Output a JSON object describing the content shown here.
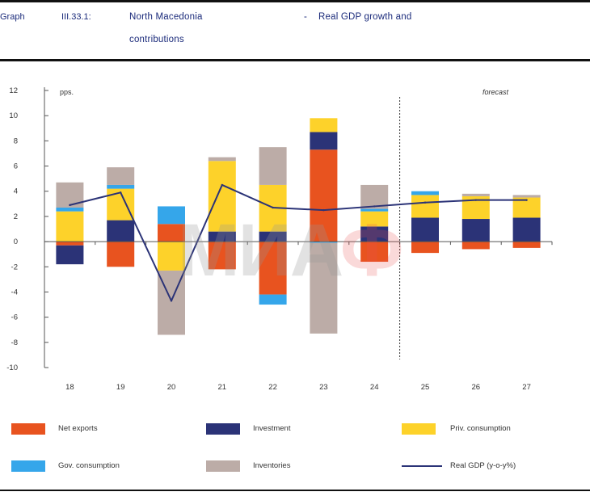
{
  "header": {
    "graph_label": "Graph",
    "graph_number": "III.33.1:",
    "title_part1": "North Macedonia",
    "dash": "-",
    "title_part2": "Real GDP growth and",
    "title_line2": "contributions"
  },
  "watermark": {
    "main": "МИА",
    "accent": "Ф"
  },
  "colors": {
    "net_exports": "#e8531f",
    "investment": "#2b3377",
    "priv_consumption": "#fdd22a",
    "gov_consumption": "#35a6ea",
    "inventories": "#bcaca7",
    "real_gdp": "#2b3377"
  },
  "chart_data": {
    "type": "bar",
    "stacked": true,
    "categories": [
      "18",
      "19",
      "20",
      "21",
      "22",
      "23",
      "24",
      "25",
      "26",
      "27"
    ],
    "ylabel": "pps.",
    "ylim": [
      -10,
      12
    ],
    "yticks": [
      "12",
      "10",
      "8",
      "6",
      "4",
      "2",
      "0",
      "-2",
      "-4",
      "-6",
      "-8",
      "-10"
    ],
    "annotation": "forecast",
    "forecast_divider_between": [
      "24",
      "25"
    ],
    "series": [
      {
        "name": "Net exports",
        "key": "net_exports",
        "values": [
          -0.3,
          -2.0,
          1.4,
          -2.2,
          -4.2,
          7.3,
          -1.6,
          -0.9,
          -0.6,
          -0.5
        ]
      },
      {
        "name": "Investment",
        "key": "investment",
        "values": [
          -1.5,
          1.7,
          0.0,
          0.8,
          0.8,
          1.4,
          1.2,
          1.9,
          1.8,
          1.9
        ]
      },
      {
        "name": "Priv. consumption",
        "key": "priv_consumption",
        "values": [
          2.4,
          2.5,
          -2.3,
          5.6,
          3.7,
          1.1,
          1.2,
          1.8,
          1.8,
          1.6
        ]
      },
      {
        "name": "Gov. consumption",
        "key": "gov_consumption",
        "values": [
          0.3,
          0.3,
          1.4,
          0.0,
          -0.8,
          -0.1,
          0.2,
          0.3,
          0.0,
          0.0
        ]
      },
      {
        "name": "Inventories",
        "key": "inventories",
        "values": [
          2.0,
          1.4,
          -5.1,
          0.3,
          3.0,
          -7.2,
          1.9,
          0.0,
          0.2,
          0.2
        ]
      }
    ],
    "line": {
      "name": "Real GDP (y-o-y%)",
      "key": "real_gdp",
      "values": [
        2.9,
        3.9,
        -4.7,
        4.5,
        2.7,
        2.5,
        2.8,
        3.1,
        3.3,
        3.3
      ]
    },
    "legend": [
      {
        "label": "Net exports",
        "key": "net_exports",
        "kind": "bar"
      },
      {
        "label": "Investment",
        "key": "investment",
        "kind": "bar"
      },
      {
        "label": "Priv. consumption",
        "key": "priv_consumption",
        "kind": "bar"
      },
      {
        "label": "Gov. consumption",
        "key": "gov_consumption",
        "kind": "bar"
      },
      {
        "label": "Inventories",
        "key": "inventories",
        "kind": "bar"
      },
      {
        "label": "Real GDP (y-o-y%)",
        "key": "real_gdp",
        "kind": "line"
      }
    ],
    "legend_position": "bottom",
    "grid": false
  }
}
